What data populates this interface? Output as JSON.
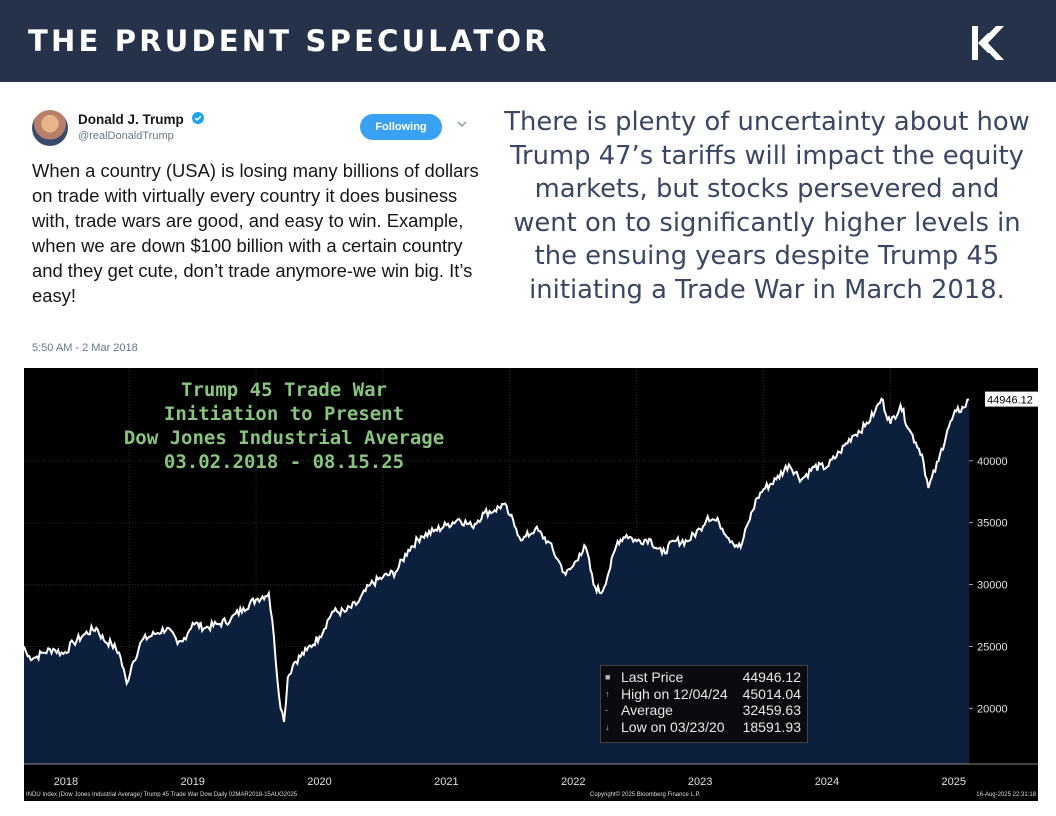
{
  "header": {
    "brand": "THE PRUDENT SPECULATOR",
    "logo_icon": "tps-k-logo-icon"
  },
  "tweet": {
    "name": "Donald J. Trump",
    "handle": "@realDonaldTrump",
    "follow_label": "Following",
    "text": "When a country (USA) is losing many billions of dollars on trade with virtually every country it does business with, trade wars are good, and easy to win. Example, when we are down $100 billion with a certain country and they get cute, don’t trade anymore-we win big. It’s easy!",
    "timestamp": "5:50 AM - 2 Mar 2018"
  },
  "commentary": "There is plenty of uncertainty about how Trump 47’s tariffs will impact the equity markets, but stocks persevered and went on to significantly higher levels in the ensuing years despite Trump 45 initiating a Trade War in March 2018.",
  "chart_title": {
    "line1": "Trump 45 Trade War",
    "line2": "Initiation to Present",
    "line3": "Dow Jones Industrial Average",
    "line4": "03.02.2018 - 08.15.25"
  },
  "legend": {
    "last_label": "Last Price",
    "last_value": "44946.12",
    "high_label": "High on 12/04/24",
    "high_value": "45014.04",
    "avg_label": "Average",
    "avg_value": "32459.63",
    "low_label": "Low on 03/23/20",
    "low_value": "18591.93"
  },
  "footer": {
    "left": "INDU Index (Dow Jones Industrial Average) Trump 45 Trade War Dow  Daily 02MAR2018-15AUG2025",
    "middle": "Copyright© 2025 Bloomberg Finance L.P.",
    "right": "16-Aug-2025 22:31:18"
  },
  "colors": {
    "header_bg": "#25324a",
    "title_green": "#88c47e",
    "area_fill": "#0c1f3d",
    "line": "#ffffff",
    "commentary_text": "#3a4764",
    "follow_blue": "#3aa1f2"
  },
  "chart_data": {
    "type": "area",
    "title": "Dow Jones Industrial Average",
    "series_name": "INDU Index",
    "x_start": 2018.17,
    "x_end": 2025.62,
    "ylim": [
      15500,
      47500
    ],
    "y_ticks": [
      20000,
      25000,
      30000,
      35000,
      40000
    ],
    "x_ticks": [
      "2018",
      "2019",
      "2020",
      "2021",
      "2022",
      "2023",
      "2024",
      "2025"
    ],
    "last_price_tag": "44946.12",
    "x": [
      2018.17,
      2018.2,
      2018.26,
      2018.32,
      2018.4,
      2018.48,
      2018.56,
      2018.65,
      2018.74,
      2018.8,
      2018.86,
      2018.92,
      2018.98,
      2019.02,
      2019.1,
      2019.2,
      2019.3,
      2019.38,
      2019.42,
      2019.5,
      2019.6,
      2019.7,
      2019.8,
      2019.9,
      2020.0,
      2020.1,
      2020.14,
      2020.18,
      2020.22,
      2020.25,
      2020.3,
      2020.4,
      2020.5,
      2020.6,
      2020.7,
      2020.8,
      2020.9,
      2021.0,
      2021.1,
      2021.2,
      2021.3,
      2021.4,
      2021.5,
      2021.6,
      2021.7,
      2021.8,
      2021.88,
      2021.95,
      2022.0,
      2022.05,
      2022.1,
      2022.2,
      2022.3,
      2022.38,
      2022.44,
      2022.5,
      2022.55,
      2022.6,
      2022.66,
      2022.72,
      2022.78,
      2022.85,
      2022.92,
      2023.0,
      2023.1,
      2023.2,
      2023.3,
      2023.4,
      2023.5,
      2023.56,
      2023.65,
      2023.75,
      2023.82,
      2023.88,
      2023.95,
      2024.0,
      2024.1,
      2024.2,
      2024.3,
      2024.4,
      2024.5,
      2024.6,
      2024.7,
      2024.8,
      2024.88,
      2024.93,
      2025.0,
      2025.08,
      2025.15,
      2025.2,
      2025.25,
      2025.3,
      2025.38,
      2025.45,
      2025.52,
      2025.58,
      2025.62
    ],
    "values": [
      25000,
      24200,
      24100,
      24500,
      24800,
      24400,
      25300,
      26000,
      26500,
      25500,
      25200,
      24500,
      22000,
      23500,
      25500,
      26000,
      26500,
      25200,
      25400,
      26900,
      26500,
      26800,
      27200,
      28100,
      28800,
      29300,
      25800,
      21000,
      18900,
      22500,
      23700,
      24700,
      25800,
      27800,
      27800,
      28500,
      30000,
      30600,
      31000,
      32800,
      33900,
      34300,
      34800,
      35300,
      34700,
      35800,
      36000,
      36500,
      35600,
      34500,
      33600,
      34500,
      33500,
      32000,
      30800,
      31500,
      32500,
      33000,
      30000,
      29300,
      31000,
      33500,
      34000,
      33500,
      33700,
      32500,
      33500,
      33500,
      34500,
      35500,
      35000,
      33500,
      33000,
      35000,
      37000,
      37700,
      38500,
      39700,
      38500,
      39500,
      39500,
      40700,
      42000,
      42800,
      44000,
      45014,
      43000,
      44500,
      42500,
      41500,
      40500,
      37800,
      40000,
      42500,
      44000,
      44300,
      44946
    ]
  }
}
